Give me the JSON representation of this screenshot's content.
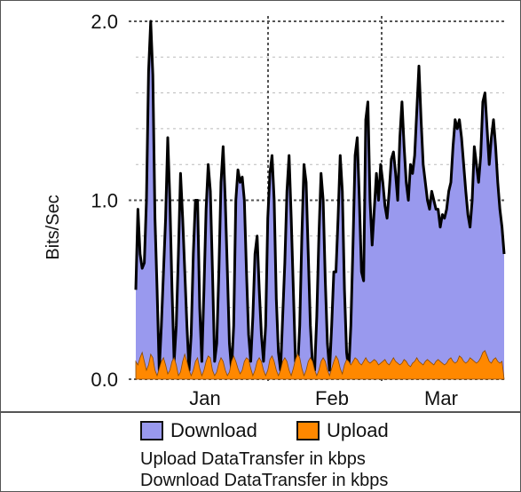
{
  "colors": {
    "download_fill": "#9999ee",
    "download_line": "#000000",
    "upload_fill": "#ff8800",
    "grid": "#555555"
  },
  "chart_data": {
    "type": "area",
    "title": "",
    "xlabel": "",
    "ylabel": "Bits/Sec",
    "ylim": [
      0,
      2.0
    ],
    "yticks": [
      "2.0",
      "1.0",
      "0.0"
    ],
    "xticks": [
      "Jan",
      "Feb",
      "Mar"
    ],
    "grid": true,
    "legend_position": "bottom",
    "series": [
      {
        "name": "Download",
        "color": "#9999ee",
        "values": [
          0.5,
          0.95,
          0.7,
          0.62,
          0.65,
          1.0,
          1.72,
          2.0,
          1.7,
          0.9,
          0.5,
          0.05,
          0.3,
          0.6,
          0.9,
          1.35,
          1.0,
          0.5,
          0.1,
          0.3,
          0.7,
          1.15,
          0.9,
          0.6,
          0.3,
          0.05,
          0.25,
          0.7,
          1.0,
          1.0,
          0.4,
          0.1,
          0.5,
          0.95,
          1.2,
          1.05,
          0.6,
          0.1,
          0.2,
          0.6,
          1.1,
          1.3,
          1.0,
          0.6,
          0.2,
          0.05,
          0.3,
          1.0,
          1.17,
          1.1,
          1.13,
          1.0,
          0.6,
          0.25,
          0.1,
          0.35,
          0.7,
          0.8,
          0.5,
          0.25,
          0.1,
          0.3,
          0.9,
          1.15,
          1.25,
          1.0,
          0.45,
          0.15,
          0.05,
          0.35,
          0.65,
          1.05,
          1.25,
          0.9,
          0.5,
          0.1,
          0.05,
          0.3,
          0.8,
          1.2,
          1.1,
          0.7,
          0.3,
          0.08,
          0.05,
          0.35,
          0.8,
          1.15,
          1.0,
          0.55,
          0.2,
          0.05,
          0.3,
          0.6,
          0.6,
          0.9,
          1.25,
          1.05,
          0.5,
          0.15,
          0.05,
          0.3,
          0.75,
          1.25,
          1.35,
          1.0,
          0.6,
          0.55,
          1.45,
          1.55,
          1.0,
          0.75,
          0.95,
          1.15,
          1.0,
          1.2,
          1.1,
          0.97,
          0.9,
          1.05,
          1.23,
          1.27,
          1.15,
          1.0,
          1.35,
          1.55,
          1.3,
          1.1,
          1.0,
          1.2,
          1.15,
          1.25,
          1.5,
          1.75,
          1.45,
          1.2,
          1.1,
          1.0,
          0.95,
          1.05,
          1.0,
          0.95,
          0.95,
          0.85,
          0.92,
          0.9,
          0.95,
          1.05,
          1.1,
          1.3,
          1.45,
          1.4,
          1.45,
          1.35,
          1.2,
          1.05,
          0.92,
          0.85,
          1.0,
          1.3,
          1.2,
          1.1,
          1.25,
          1.55,
          1.6,
          1.4,
          1.2,
          1.35,
          1.45,
          1.3,
          1.1,
          0.95,
          0.85,
          0.7
        ]
      },
      {
        "name": "Upload",
        "color": "#ff8800",
        "values": [
          0.1,
          0.08,
          0.12,
          0.15,
          0.1,
          0.05,
          0.08,
          0.14,
          0.12,
          0.05,
          0.02,
          0.06,
          0.1,
          0.12,
          0.08,
          0.03,
          0.05,
          0.1,
          0.12,
          0.08,
          0.02,
          0.04,
          0.1,
          0.14,
          0.1,
          0.05,
          0.02,
          0.05,
          0.1,
          0.12,
          0.06,
          0.02,
          0.05,
          0.1,
          0.13,
          0.12,
          0.05,
          0.02,
          0.04,
          0.09,
          0.12,
          0.1,
          0.05,
          0.02,
          0.04,
          0.1,
          0.13,
          0.1,
          0.06,
          0.03,
          0.05,
          0.1,
          0.12,
          0.11,
          0.06,
          0.02,
          0.05,
          0.1,
          0.12,
          0.1,
          0.05,
          0.02,
          0.05,
          0.11,
          0.13,
          0.1,
          0.05,
          0.02,
          0.05,
          0.1,
          0.12,
          0.1,
          0.05,
          0.02,
          0.06,
          0.11,
          0.14,
          0.12,
          0.06,
          0.02,
          0.05,
          0.1,
          0.12,
          0.1,
          0.05,
          0.02,
          0.05,
          0.1,
          0.12,
          0.1,
          0.05,
          0.02,
          0.06,
          0.1,
          0.13,
          0.11,
          0.06,
          0.03,
          0.08,
          0.11,
          0.1,
          0.08,
          0.1,
          0.12,
          0.11,
          0.09,
          0.08,
          0.1,
          0.12,
          0.1,
          0.09,
          0.1,
          0.11,
          0.1,
          0.08,
          0.09,
          0.1,
          0.11,
          0.09,
          0.08,
          0.1,
          0.12,
          0.1,
          0.09,
          0.08,
          0.09,
          0.11,
          0.1,
          0.08,
          0.07,
          0.09,
          0.1,
          0.12,
          0.1,
          0.09,
          0.08,
          0.1,
          0.11,
          0.1,
          0.09,
          0.08,
          0.1,
          0.11,
          0.1,
          0.09,
          0.08,
          0.09,
          0.11,
          0.12,
          0.1,
          0.09,
          0.1,
          0.13,
          0.12,
          0.1,
          0.09,
          0.1,
          0.12,
          0.11,
          0.1,
          0.09,
          0.1,
          0.12,
          0.15,
          0.16,
          0.13,
          0.1,
          0.09,
          0.11,
          0.12,
          0.1,
          0.09,
          0.1
        ]
      }
    ]
  },
  "legend": {
    "download_label": "Download",
    "upload_label": "Upload",
    "caption_upload": "Upload DataTransfer in kbps",
    "caption_download": "Download DataTransfer in kbps"
  }
}
